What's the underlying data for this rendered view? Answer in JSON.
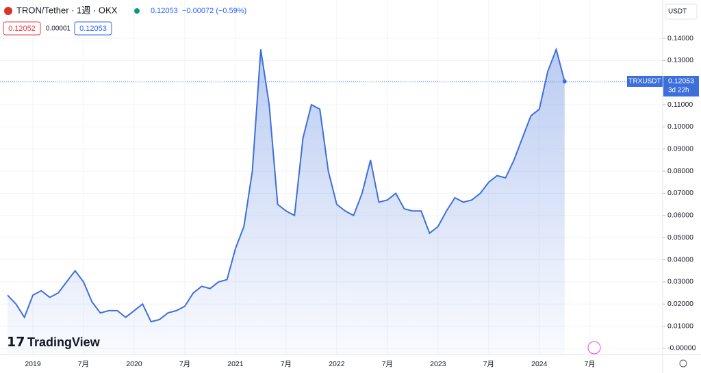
{
  "chart_data": {
    "type": "area",
    "title": "TRON/Tether · 1週 · OKX",
    "last_price": "0.12053",
    "change": "−0.00072 (−0.59%)",
    "bid": "0.12052",
    "spread": "0.00001",
    "ask": "0.12053",
    "currency": "USDT",
    "countdown": "3d 22h",
    "logo": "TradingView",
    "x": [
      "2018-10",
      "2018-11",
      "2018-12",
      "2019-01",
      "2019-02",
      "2019-03",
      "2019-04",
      "2019-05",
      "2019-06",
      "2019-07",
      "2019-08",
      "2019-09",
      "2019-10",
      "2019-11",
      "2019-12",
      "2020-01",
      "2020-02",
      "2020-03",
      "2020-04",
      "2020-05",
      "2020-06",
      "2020-07",
      "2020-08",
      "2020-09",
      "2020-10",
      "2020-11",
      "2020-12",
      "2021-01",
      "2021-02",
      "2021-03",
      "2021-04",
      "2021-05",
      "2021-06",
      "2021-07",
      "2021-08",
      "2021-09",
      "2021-10",
      "2021-11",
      "2021-12",
      "2022-01",
      "2022-02",
      "2022-03",
      "2022-04",
      "2022-05",
      "2022-06",
      "2022-07",
      "2022-08",
      "2022-09",
      "2022-10",
      "2022-11",
      "2022-12",
      "2023-01",
      "2023-02",
      "2023-03",
      "2023-04",
      "2023-05",
      "2023-06",
      "2023-07",
      "2023-08",
      "2023-09",
      "2023-10",
      "2023-11",
      "2023-12",
      "2024-01",
      "2024-02",
      "2024-03",
      "2024-04"
    ],
    "series": [
      {
        "name": "TRXUSDT",
        "color": "#3d6fdb",
        "values": [
          0.024,
          0.02,
          0.014,
          0.024,
          0.026,
          0.023,
          0.025,
          0.03,
          0.035,
          0.03,
          0.021,
          0.016,
          0.017,
          0.017,
          0.014,
          0.017,
          0.02,
          0.012,
          0.013,
          0.016,
          0.017,
          0.019,
          0.025,
          0.028,
          0.027,
          0.03,
          0.031,
          0.045,
          0.055,
          0.08,
          0.135,
          0.11,
          0.065,
          0.062,
          0.06,
          0.095,
          0.11,
          0.108,
          0.08,
          0.065,
          0.062,
          0.06,
          0.07,
          0.085,
          0.066,
          0.067,
          0.07,
          0.063,
          0.062,
          0.062,
          0.052,
          0.055,
          0.062,
          0.068,
          0.066,
          0.067,
          0.07,
          0.075,
          0.078,
          0.077,
          0.085,
          0.095,
          0.105,
          0.108,
          0.125,
          0.135,
          0.12053
        ]
      }
    ],
    "xticks": [
      {
        "value": "2019-01",
        "label": "2019"
      },
      {
        "value": "2019-07",
        "label": "7月"
      },
      {
        "value": "2020-01",
        "label": "2020"
      },
      {
        "value": "2020-07",
        "label": "7月"
      },
      {
        "value": "2021-01",
        "label": "2021"
      },
      {
        "value": "2021-07",
        "label": "7月"
      },
      {
        "value": "2022-01",
        "label": "2022"
      },
      {
        "value": "2022-07",
        "label": "7月"
      },
      {
        "value": "2023-01",
        "label": "2023"
      },
      {
        "value": "2023-07",
        "label": "7月"
      },
      {
        "value": "2024-01",
        "label": "2024"
      },
      {
        "value": "2024-07",
        "label": "7月"
      }
    ],
    "ylim": [
      -0.0028,
      0.1573
    ],
    "yticks": [
      {
        "value": 0,
        "label": "-0.00000"
      },
      {
        "value": 0.01,
        "label": "0.01000"
      },
      {
        "value": 0.02,
        "label": "0.02000"
      },
      {
        "value": 0.03,
        "label": "0.03000"
      },
      {
        "value": 0.04,
        "label": "0.04000"
      },
      {
        "value": 0.05,
        "label": "0.05000"
      },
      {
        "value": 0.06,
        "label": "0.06000"
      },
      {
        "value": 0.07,
        "label": "0.07000"
      },
      {
        "value": 0.08,
        "label": "0.08000"
      },
      {
        "value": 0.09,
        "label": "0.09000"
      },
      {
        "value": 0.1,
        "label": "0.10000"
      },
      {
        "value": 0.11,
        "label": "0.11000"
      },
      {
        "value": 0.12,
        "label": "0.12000"
      },
      {
        "value": 0.13,
        "label": "0.13000"
      },
      {
        "value": 0.14,
        "label": "0.14000"
      }
    ],
    "grid": true
  }
}
